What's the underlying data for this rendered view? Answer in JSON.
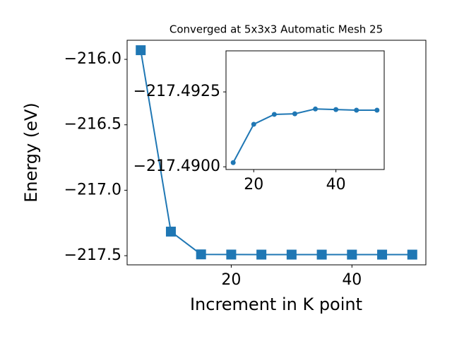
{
  "chart_data": [
    {
      "type": "line",
      "title": "Converged at 5x3x3 Automatic Mesh 25",
      "x_label": "Increment in K point",
      "y_label": "Energy (eV)",
      "marker": "square",
      "x": [
        5,
        10,
        15,
        20,
        25,
        30,
        35,
        40,
        45,
        50
      ],
      "series": [
        {
          "color": "#1f77b4",
          "values": [
            -215.93,
            -217.316,
            -217.4901,
            -217.4914,
            -217.4918,
            -217.4918,
            -217.4919,
            -217.4919,
            -217.4919,
            -217.4919
          ]
        }
      ],
      "xlim": [
        2.75,
        52.25
      ],
      "xticks": [
        20,
        40
      ],
      "ylim": [
        -217.57,
        -215.854
      ],
      "yticks": [
        {
          "value": -217.5,
          "label": "−217.5"
        },
        {
          "value": -217.0,
          "label": "−217.0"
        },
        {
          "value": -216.5,
          "label": "−216.5"
        },
        {
          "value": -216.0,
          "label": "−216.0"
        }
      ]
    },
    {
      "type": "line",
      "marker": "circle",
      "x": [
        15,
        20,
        25,
        30,
        35,
        40,
        45,
        50
      ],
      "series": [
        {
          "color": "#1f77b4",
          "values": [
            -217.49014,
            -217.49142,
            -217.49175,
            -217.49177,
            -217.49193,
            -217.49191,
            -217.49189,
            -217.49189
          ]
        }
      ],
      "xlim": [
        13.25,
        51.75
      ],
      "xticks": [
        20,
        40
      ],
      "ylim": [
        -217.48991,
        -217.49387
      ],
      "yticks": [
        {
          "value": -217.49,
          "label": "−217.4900"
        },
        {
          "value": -217.4925,
          "label": "−217.4925"
        }
      ]
    }
  ]
}
